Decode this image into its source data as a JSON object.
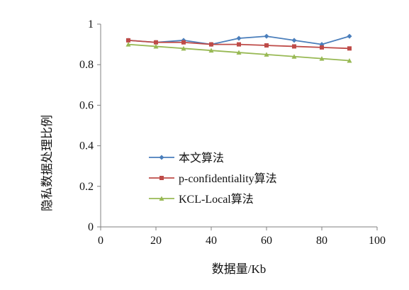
{
  "chart_data": {
    "type": "line",
    "title": "",
    "xlabel": "数据量/Kb",
    "ylabel": "隐私数据处理比例",
    "x": [
      10,
      20,
      30,
      40,
      50,
      60,
      70,
      80,
      90
    ],
    "xlim": [
      0,
      100
    ],
    "ylim": [
      0,
      1
    ],
    "x_ticks": [
      0,
      20,
      40,
      60,
      80,
      100
    ],
    "y_ticks": [
      0,
      0.2,
      0.4,
      0.6,
      0.8,
      1
    ],
    "x_tick_labels": [
      "0",
      "20",
      "40",
      "60",
      "80",
      "100"
    ],
    "y_tick_labels": [
      "0",
      "0.2",
      "0.4",
      "0.6",
      "0.8",
      "1"
    ],
    "grid": false,
    "legend_position": "center-left",
    "series": [
      {
        "name": "本文算法",
        "color": "#4a7ebb",
        "marker": "diamond",
        "values": [
          0.92,
          0.91,
          0.92,
          0.9,
          0.93,
          0.94,
          0.92,
          0.9,
          0.94
        ]
      },
      {
        "name": "p-confidentiality算法",
        "color": "#be4b48",
        "marker": "square",
        "values": [
          0.92,
          0.91,
          0.91,
          0.9,
          0.9,
          0.895,
          0.89,
          0.885,
          0.88
        ]
      },
      {
        "name": "KCL-Local算法",
        "color": "#98b954",
        "marker": "triangle",
        "values": [
          0.9,
          0.89,
          0.88,
          0.87,
          0.86,
          0.85,
          0.84,
          0.83,
          0.82
        ]
      }
    ]
  }
}
